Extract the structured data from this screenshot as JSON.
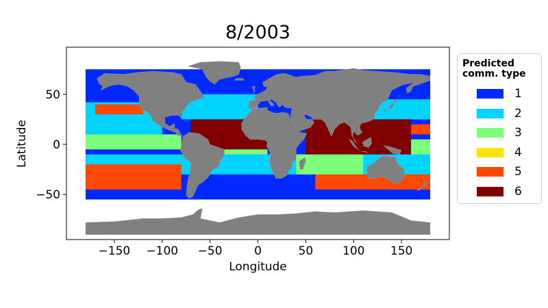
{
  "chart_data": {
    "type": "scatter",
    "title": "8/2003",
    "xlabel": "Longitude",
    "ylabel": "Latitude",
    "xlim": [
      -200,
      200
    ],
    "ylim": [
      -95,
      97
    ],
    "xticks": [
      -150,
      -100,
      -50,
      0,
      50,
      100,
      150
    ],
    "yticks": [
      -50,
      0,
      50
    ],
    "xtick_labels": [
      "−150",
      "−100",
      "−50",
      "0",
      "50",
      "100",
      "150"
    ],
    "ytick_labels": [
      "−50",
      "0",
      "50"
    ],
    "grid": false,
    "land_color": "#808080",
    "legend": {
      "title": "Predicted comm. type",
      "title_lines": [
        "Predicted",
        "comm. type"
      ],
      "placement": "outside-right",
      "entries": [
        {
          "label": "1",
          "color": "#0028ff"
        },
        {
          "label": "2",
          "color": "#00d4ff"
        },
        {
          "label": "3",
          "color": "#7dff7a"
        },
        {
          "label": "4",
          "color": "#ffe500"
        },
        {
          "label": "5",
          "color": "#ff4800"
        },
        {
          "label": "6",
          "color": "#800000"
        }
      ]
    },
    "regions": [
      {
        "type": "1",
        "lon": [
          -180,
          180
        ],
        "lat": [
          -55,
          75
        ]
      },
      {
        "type": "2",
        "lon": [
          -180,
          -100
        ],
        "lat": [
          10,
          42
        ]
      },
      {
        "type": "2",
        "lon": [
          -80,
          0
        ],
        "lat": [
          25,
          50
        ]
      },
      {
        "type": "2",
        "lon": [
          120,
          180
        ],
        "lat": [
          25,
          45
        ]
      },
      {
        "type": "2",
        "lon": [
          -180,
          180
        ],
        "lat": [
          -30,
          -10
        ]
      },
      {
        "type": "3",
        "lon": [
          -180,
          -80
        ],
        "lat": [
          -5,
          10
        ]
      },
      {
        "type": "3",
        "lon": [
          -40,
          10
        ],
        "lat": [
          -10,
          0
        ]
      },
      {
        "type": "3",
        "lon": [
          40,
          110
        ],
        "lat": [
          -30,
          -10
        ]
      },
      {
        "type": "3",
        "lon": [
          150,
          180
        ],
        "lat": [
          -10,
          5
        ]
      },
      {
        "type": "5",
        "lon": [
          -180,
          -80
        ],
        "lat": [
          -45,
          -20
        ]
      },
      {
        "type": "5",
        "lon": [
          -170,
          -120
        ],
        "lat": [
          30,
          40
        ]
      },
      {
        "type": "5",
        "lon": [
          60,
          180
        ],
        "lat": [
          -45,
          -30
        ]
      },
      {
        "type": "5",
        "lon": [
          160,
          180
        ],
        "lat": [
          10,
          20
        ]
      },
      {
        "type": "6",
        "lon": [
          -70,
          20
        ],
        "lat": [
          -5,
          25
        ]
      },
      {
        "type": "6",
        "lon": [
          50,
          160
        ],
        "lat": [
          -10,
          25
        ]
      }
    ],
    "land": [
      [
        [
          -168,
          66
        ],
        [
          -160,
          71
        ],
        [
          -140,
          70
        ],
        [
          -125,
          72
        ],
        [
          -110,
          73
        ],
        [
          -90,
          72
        ],
        [
          -80,
          70
        ],
        [
          -75,
          62
        ],
        [
          -65,
          60
        ],
        [
          -60,
          53
        ],
        [
          -56,
          47
        ],
        [
          -66,
          44
        ],
        [
          -71,
          42
        ],
        [
          -75,
          38
        ],
        [
          -76,
          35
        ],
        [
          -81,
          31
        ],
        [
          -80,
          26
        ],
        [
          -83,
          29
        ],
        [
          -90,
          29
        ],
        [
          -97,
          27
        ],
        [
          -97,
          21
        ],
        [
          -92,
          18
        ],
        [
          -87,
          21
        ],
        [
          -87,
          16
        ],
        [
          -83,
          15
        ],
        [
          -80,
          9
        ],
        [
          -78,
          8
        ],
        [
          -84,
          9
        ],
        [
          -86,
          12
        ],
        [
          -92,
          14
        ],
        [
          -97,
          16
        ],
        [
          -105,
          20
        ],
        [
          -110,
          24
        ],
        [
          -112,
          29
        ],
        [
          -115,
          32
        ],
        [
          -117,
          33
        ],
        [
          -120,
          34
        ],
        [
          -123,
          38
        ],
        [
          -124,
          42
        ],
        [
          -124,
          48
        ],
        [
          -130,
          54
        ],
        [
          -136,
          58
        ],
        [
          -145,
          60
        ],
        [
          -152,
          59
        ],
        [
          -158,
          57
        ],
        [
          -164,
          54
        ],
        [
          -162,
          58
        ],
        [
          -166,
          61
        ]
      ],
      [
        [
          -78,
          8
        ],
        [
          -72,
          12
        ],
        [
          -62,
          11
        ],
        [
          -52,
          5
        ],
        [
          -50,
          0
        ],
        [
          -44,
          -2
        ],
        [
          -35,
          -5
        ],
        [
          -35,
          -10
        ],
        [
          -39,
          -16
        ],
        [
          -41,
          -22
        ],
        [
          -48,
          -26
        ],
        [
          -52,
          -33
        ],
        [
          -58,
          -38
        ],
        [
          -63,
          -41
        ],
        [
          -65,
          -46
        ],
        [
          -68,
          -52
        ],
        [
          -72,
          -54
        ],
        [
          -75,
          -50
        ],
        [
          -74,
          -42
        ],
        [
          -73,
          -35
        ],
        [
          -71,
          -28
        ],
        [
          -70,
          -18
        ],
        [
          -76,
          -14
        ],
        [
          -81,
          -6
        ],
        [
          -80,
          -1
        ],
        [
          -79,
          5
        ]
      ],
      [
        [
          -17,
          21
        ],
        [
          -17,
          15
        ],
        [
          -12,
          8
        ],
        [
          -8,
          5
        ],
        [
          0,
          5
        ],
        [
          8,
          4
        ],
        [
          10,
          2
        ],
        [
          9,
          -2
        ],
        [
          12,
          -6
        ],
        [
          13,
          -12
        ],
        [
          12,
          -18
        ],
        [
          15,
          -27
        ],
        [
          19,
          -34
        ],
        [
          25,
          -34
        ],
        [
          30,
          -31
        ],
        [
          33,
          -26
        ],
        [
          35,
          -24
        ],
        [
          36,
          -18
        ],
        [
          40,
          -15
        ],
        [
          40,
          -10
        ],
        [
          40,
          -4
        ],
        [
          43,
          0
        ],
        [
          48,
          5
        ],
        [
          51,
          11
        ],
        [
          44,
          12
        ],
        [
          43,
          13
        ],
        [
          40,
          17
        ],
        [
          37,
          22
        ],
        [
          33,
          28
        ],
        [
          32,
          31
        ],
        [
          25,
          32
        ],
        [
          20,
          31
        ],
        [
          15,
          32
        ],
        [
          10,
          34
        ],
        [
          10,
          37
        ],
        [
          0,
          36
        ],
        [
          -5,
          36
        ],
        [
          -10,
          30
        ],
        [
          -13,
          27
        ]
      ],
      [
        [
          -10,
          36
        ],
        [
          -9,
          43
        ],
        [
          -2,
          44
        ],
        [
          -4,
          48
        ],
        [
          2,
          51
        ],
        [
          8,
          54
        ],
        [
          10,
          57
        ],
        [
          6,
          58
        ],
        [
          5,
          62
        ],
        [
          14,
          67
        ],
        [
          20,
          70
        ],
        [
          28,
          71
        ],
        [
          40,
          67
        ],
        [
          45,
          68
        ],
        [
          60,
          69
        ],
        [
          70,
          73
        ],
        [
          80,
          73
        ],
        [
          100,
          76
        ],
        [
          110,
          74
        ],
        [
          140,
          72
        ],
        [
          160,
          70
        ],
        [
          170,
          70
        ],
        [
          180,
          68
        ],
        [
          180,
          64
        ],
        [
          175,
          62
        ],
        [
          162,
          58
        ],
        [
          160,
          53
        ],
        [
          156,
          51
        ],
        [
          155,
          56
        ],
        [
          163,
          62
        ],
        [
          150,
          59
        ],
        [
          140,
          54
        ],
        [
          135,
          44
        ],
        [
          130,
          42
        ],
        [
          127,
          38
        ],
        [
          126,
          35
        ],
        [
          122,
          31
        ],
        [
          122,
          27
        ],
        [
          119,
          24
        ],
        [
          113,
          22
        ],
        [
          108,
          21
        ],
        [
          106,
          17
        ],
        [
          109,
          12
        ],
        [
          105,
          9
        ],
        [
          103,
          10
        ],
        [
          100,
          13
        ],
        [
          99,
          9
        ],
        [
          101,
          3
        ],
        [
          104,
          1
        ],
        [
          100,
          6
        ],
        [
          98,
          9
        ],
        [
          97,
          17
        ],
        [
          92,
          21
        ],
        [
          90,
          22
        ],
        [
          85,
          20
        ],
        [
          80,
          15
        ],
        [
          77,
          8
        ],
        [
          73,
          16
        ],
        [
          70,
          22
        ],
        [
          66,
          25
        ],
        [
          57,
          25
        ],
        [
          56,
          27
        ],
        [
          50,
          30
        ],
        [
          48,
          29
        ],
        [
          51,
          25
        ],
        [
          56,
          25
        ],
        [
          59,
          22
        ],
        [
          55,
          17
        ],
        [
          43,
          13
        ],
        [
          40,
          17
        ],
        [
          37,
          22
        ],
        [
          34,
          28
        ],
        [
          35,
          33
        ],
        [
          36,
          36
        ],
        [
          28,
          37
        ],
        [
          26,
          40
        ],
        [
          24,
          38
        ],
        [
          22,
          37
        ],
        [
          20,
          40
        ],
        [
          19,
          42
        ],
        [
          14,
          45
        ],
        [
          12,
          44
        ],
        [
          16,
          41
        ],
        [
          17,
          39
        ],
        [
          14,
          38
        ],
        [
          10,
          44
        ],
        [
          6,
          43
        ],
        [
          3,
          43
        ],
        [
          -2,
          37
        ],
        [
          -6,
          36
        ]
      ],
      [
        [
          114,
          -22
        ],
        [
          114,
          -26
        ],
        [
          115,
          -34
        ],
        [
          123,
          -34
        ],
        [
          130,
          -32
        ],
        [
          135,
          -35
        ],
        [
          140,
          -38
        ],
        [
          146,
          -39
        ],
        [
          150,
          -37
        ],
        [
          153,
          -32
        ],
        [
          153,
          -25
        ],
        [
          146,
          -19
        ],
        [
          143,
          -12
        ],
        [
          141,
          -13
        ],
        [
          136,
          -12
        ],
        [
          132,
          -11
        ],
        [
          126,
          -14
        ],
        [
          122,
          -18
        ]
      ],
      [
        [
          -73,
          78
        ],
        [
          -60,
          82
        ],
        [
          -40,
          83
        ],
        [
          -20,
          82
        ],
        [
          -18,
          77
        ],
        [
          -20,
          70
        ],
        [
          -25,
          68
        ],
        [
          -40,
          65
        ],
        [
          -45,
          60
        ],
        [
          -50,
          63
        ],
        [
          -54,
          67
        ],
        [
          -58,
          75
        ],
        [
          -68,
          77
        ]
      ],
      [
        [
          -180,
          -78
        ],
        [
          -180,
          -90
        ],
        [
          180,
          -90
        ],
        [
          180,
          -78
        ],
        [
          160,
          -76
        ],
        [
          140,
          -68
        ],
        [
          110,
          -66
        ],
        [
          80,
          -68
        ],
        [
          60,
          -67
        ],
        [
          40,
          -69
        ],
        [
          20,
          -70
        ],
        [
          0,
          -70
        ],
        [
          -20,
          -73
        ],
        [
          -40,
          -78
        ],
        [
          -60,
          -74
        ],
        [
          -58,
          -64
        ],
        [
          -62,
          -65
        ],
        [
          -68,
          -70
        ],
        [
          -80,
          -73
        ],
        [
          -100,
          -74
        ],
        [
          -120,
          -74
        ],
        [
          -150,
          -77
        ]
      ],
      [
        [
          49,
          -13
        ],
        [
          50,
          -16
        ],
        [
          47,
          -25
        ],
        [
          44,
          -25
        ],
        [
          43,
          -17
        ]
      ],
      [
        [
          -5,
          50
        ],
        [
          -3,
          58
        ],
        [
          -6,
          58
        ],
        [
          -5,
          55
        ],
        [
          -3,
          54
        ]
      ],
      [
        [
          130,
          31
        ],
        [
          132,
          34
        ],
        [
          140,
          36
        ],
        [
          142,
          40
        ],
        [
          141,
          45
        ],
        [
          145,
          44
        ],
        [
          140,
          41
        ],
        [
          136,
          35
        ]
      ],
      [
        [
          95,
          5
        ],
        [
          98,
          4
        ],
        [
          104,
          -4
        ],
        [
          106,
          -6
        ],
        [
          100,
          -2
        ]
      ],
      [
        [
          108,
          -7
        ],
        [
          115,
          -8
        ],
        [
          112,
          -7
        ]
      ],
      [
        [
          109,
          2
        ],
        [
          114,
          5
        ],
        [
          118,
          7
        ],
        [
          119,
          1
        ],
        [
          116,
          -3
        ],
        [
          111,
          -2
        ]
      ],
      [
        [
          131,
          -1
        ],
        [
          141,
          -3
        ],
        [
          150,
          -6
        ],
        [
          148,
          -10
        ],
        [
          141,
          -9
        ],
        [
          137,
          -6
        ]
      ],
      [
        [
          -25,
          64
        ],
        [
          -14,
          64
        ],
        [
          -16,
          66
        ],
        [
          -22,
          66
        ]
      ],
      [
        [
          166,
          -46
        ],
        [
          173,
          -41
        ],
        [
          175,
          -36
        ],
        [
          178,
          -38
        ],
        [
          172,
          -44
        ],
        [
          168,
          -46
        ]
      ]
    ]
  }
}
